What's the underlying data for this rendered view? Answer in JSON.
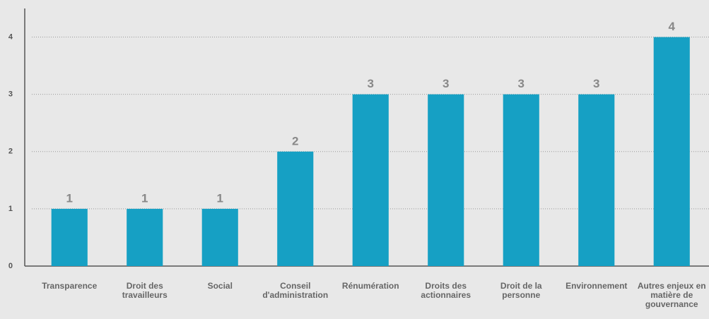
{
  "chart_data": {
    "type": "bar",
    "categories": [
      "Transparence",
      "Droit des travailleurs",
      "Social",
      "Conseil d'administration",
      "Rénumération",
      "Droits des actionnaires",
      "Droit de la personne",
      "Environnement",
      "Autres enjeux en matière de gouvernance"
    ],
    "values": [
      1,
      1,
      1,
      2,
      3,
      3,
      3,
      3,
      4
    ],
    "color": "#16a0c4",
    "ylim": [
      0,
      4.5
    ],
    "yticks": [
      0,
      1,
      2,
      3,
      4
    ],
    "grid": true
  }
}
